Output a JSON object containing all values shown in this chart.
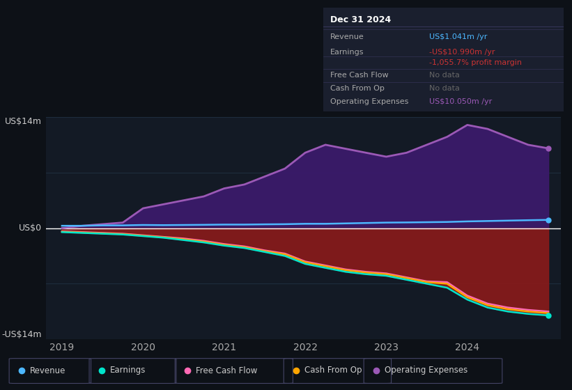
{
  "bg_color": "#0d1117",
  "plot_bg_color": "#131a25",
  "grid_color": "#1e2d3d",
  "ylim": [
    -14,
    14
  ],
  "ylabel_top": "US$14m",
  "ylabel_mid": "US$0",
  "ylabel_bot": "-US$14m",
  "x_years": [
    2019,
    2019.25,
    2019.5,
    2019.75,
    2020,
    2020.25,
    2020.5,
    2020.75,
    2021,
    2021.25,
    2021.5,
    2021.75,
    2022,
    2022.25,
    2022.5,
    2022.75,
    2023,
    2023.25,
    2023.5,
    2023.75,
    2024,
    2024.25,
    2024.5,
    2024.75,
    2025.0
  ],
  "revenue": [
    0.3,
    0.3,
    0.35,
    0.35,
    0.4,
    0.38,
    0.4,
    0.42,
    0.45,
    0.45,
    0.48,
    0.5,
    0.55,
    0.55,
    0.6,
    0.65,
    0.7,
    0.72,
    0.75,
    0.78,
    0.85,
    0.9,
    0.95,
    1.0,
    1.041
  ],
  "earnings": [
    -0.5,
    -0.6,
    -0.7,
    -0.8,
    -1.0,
    -1.2,
    -1.5,
    -1.8,
    -2.2,
    -2.5,
    -3.0,
    -3.5,
    -4.5,
    -5.0,
    -5.5,
    -5.8,
    -6.0,
    -6.5,
    -7.0,
    -7.5,
    -9.0,
    -10.0,
    -10.5,
    -10.8,
    -10.99
  ],
  "free_cash_flow": [
    -0.4,
    -0.5,
    -0.6,
    -0.7,
    -0.9,
    -1.1,
    -1.3,
    -1.6,
    -2.0,
    -2.3,
    -2.8,
    -3.2,
    -4.2,
    -4.7,
    -5.2,
    -5.5,
    -5.7,
    -6.2,
    -6.7,
    -6.8,
    -8.5,
    -9.5,
    -10.0,
    -10.3,
    -10.5
  ],
  "cash_from_op": [
    -0.45,
    -0.55,
    -0.65,
    -0.75,
    -0.95,
    -1.15,
    -1.4,
    -1.7,
    -2.1,
    -2.4,
    -2.9,
    -3.3,
    -4.3,
    -4.8,
    -5.3,
    -5.6,
    -5.8,
    -6.3,
    -6.8,
    -7.0,
    -8.7,
    -9.7,
    -10.2,
    -10.5,
    -10.7
  ],
  "op_expenses": [
    0.0,
    0.3,
    0.5,
    0.7,
    2.5,
    3.0,
    3.5,
    4.0,
    5.0,
    5.5,
    6.5,
    7.5,
    9.5,
    10.5,
    10.0,
    9.5,
    9.0,
    9.5,
    10.5,
    11.5,
    13.0,
    12.5,
    11.5,
    10.5,
    10.05
  ],
  "revenue_color": "#4db8ff",
  "earnings_color": "#00e5cc",
  "fcf_color": "#ff69b4",
  "cop_color": "#ffa500",
  "opex_color": "#9b59b6",
  "opex_fill_color": "#3d1a6e",
  "earnings_fill_color": "#8b1a1a",
  "legend_items": [
    {
      "label": "Revenue",
      "color": "#4db8ff"
    },
    {
      "label": "Earnings",
      "color": "#00e5cc"
    },
    {
      "label": "Free Cash Flow",
      "color": "#ff69b4"
    },
    {
      "label": "Cash From Op",
      "color": "#ffa500"
    },
    {
      "label": "Operating Expenses",
      "color": "#9b59b6"
    }
  ],
  "info_panel_title": "Dec 31 2024",
  "info_rows": [
    {
      "label": "Revenue",
      "value": "US$1.041m /yr",
      "value_color": "#4db8ff",
      "extra": null
    },
    {
      "label": "Earnings",
      "value": "-US$10.990m /yr",
      "value_color": "#cc3333",
      "extra": "-1,055.7% profit margin"
    },
    {
      "label": "Free Cash Flow",
      "value": "No data",
      "value_color": "#666666",
      "extra": null
    },
    {
      "label": "Cash From Op",
      "value": "No data",
      "value_color": "#666666",
      "extra": null
    },
    {
      "label": "Operating Expenses",
      "value": "US$10.050m /yr",
      "value_color": "#9b59b6",
      "extra": null
    }
  ]
}
